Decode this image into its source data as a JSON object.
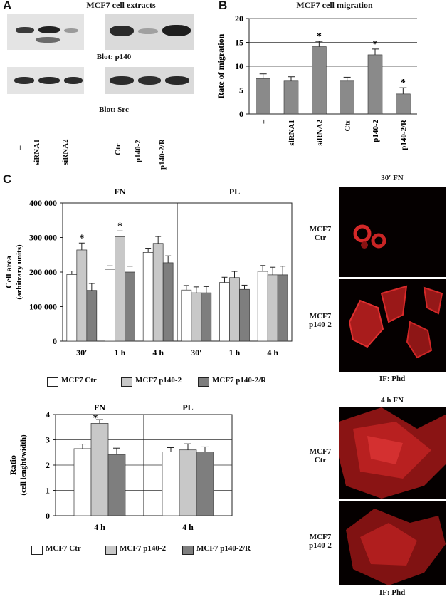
{
  "figure": {
    "panel_A": {
      "letter": "A",
      "title": "MCF7 cell extracts",
      "blot1_label": "Blot: p140",
      "blot2_label": "Blot: Src",
      "lanes": [
        "–",
        "siRNA1",
        "siRNA2",
        "Ctr",
        "p140-2",
        "p140-2/R"
      ]
    },
    "panel_B": {
      "letter": "B",
      "title": "MCF7 cell migration",
      "ylabel": "Rate of migration",
      "yticks": [
        "0",
        "5",
        "10",
        "15",
        "20"
      ],
      "star": "*"
    },
    "panel_C": {
      "letter": "C",
      "fn_label": "FN",
      "pl_label": "PL",
      "area_ylabel": "Cell area",
      "area_ylabel2": "(arbitrary units)",
      "area_yticks": [
        "0",
        "100 000",
        "200 000",
        "300 000",
        "400 000"
      ],
      "time_labels": [
        "30′",
        "1 h",
        "4 h",
        "30′",
        "1 h",
        "4 h"
      ],
      "legend": [
        "MCF7 Ctr",
        "MCF7 p140-2",
        "MCF7 p140-2/R"
      ],
      "ratio_ylabel": "Ratio",
      "ratio_ylabel2": "(cell lenght/width)",
      "ratio_yticks": [
        "0",
        "1",
        "2",
        "3",
        "4"
      ],
      "ratio_time_labels": [
        "4 h",
        "4 h"
      ],
      "star": "*",
      "micro_top_title": "30′ FN",
      "micro_bottom_title": "4 h FN",
      "micro_labels": [
        "MCF7\nCtr",
        "MCF7\np140-2",
        "MCF7\nCtr",
        "MCF7\np140-2"
      ],
      "micro_caption": "IF: Phd"
    }
  },
  "chart_data": [
    {
      "type": "bar",
      "title": "MCF7 cell migration",
      "ylabel": "Rate of migration",
      "ylim": [
        0,
        20
      ],
      "categories": [
        "–",
        "siRNA1",
        "siRNA2",
        "Ctr",
        "p140-2",
        "p140-2/R"
      ],
      "values": [
        7.4,
        6.9,
        14.1,
        6.9,
        12.4,
        4.2
      ],
      "errors": [
        1.0,
        0.9,
        1.1,
        0.8,
        1.2,
        1.3
      ],
      "significant": [
        false,
        false,
        true,
        false,
        true,
        true
      ],
      "grid": true,
      "colors": {
        "bar": "#8a8a8a"
      }
    },
    {
      "type": "bar",
      "ylabel": "Cell area (arbitrary units)",
      "ylim": [
        0,
        400000
      ],
      "groups": [
        "FN",
        "PL"
      ],
      "categories": [
        "30′",
        "1 h",
        "4 h",
        "30′",
        "1 h",
        "4 h"
      ],
      "series": [
        {
          "name": "MCF7 Ctr",
          "values": [
            193000,
            208000,
            257000,
            148000,
            170000,
            202000
          ],
          "errors": [
            10000,
            10000,
            12000,
            13000,
            15000,
            17000
          ]
        },
        {
          "name": "MCF7 p140-2",
          "values": [
            264000,
            302000,
            283000,
            140000,
            184000,
            192000
          ],
          "errors": [
            20000,
            17000,
            20000,
            17000,
            18000,
            22000
          ]
        },
        {
          "name": "MCF7 p140-2/R",
          "values": [
            147000,
            200000,
            227000,
            140000,
            150000,
            192000
          ],
          "errors": [
            20000,
            17000,
            20000,
            18000,
            12000,
            25000
          ]
        }
      ],
      "significant": {
        "MCF7 p140-2": [
          "30′",
          "1 h"
        ]
      },
      "colors": {
        "MCF7 Ctr": "#ffffff",
        "MCF7 p140-2": "#c8c8c8",
        "MCF7 p140-2/R": "#7e7e7e"
      }
    },
    {
      "type": "bar",
      "ylabel": "Ratio (cell lenght/width)",
      "ylim": [
        0,
        4
      ],
      "groups": [
        "FN",
        "PL"
      ],
      "categories": [
        "4 h",
        "4 h"
      ],
      "series": [
        {
          "name": "MCF7 Ctr",
          "values": [
            2.65,
            2.52
          ],
          "errors": [
            0.18,
            0.17
          ]
        },
        {
          "name": "MCF7 p140-2",
          "values": [
            3.65,
            2.6
          ],
          "errors": [
            0.15,
            0.24
          ]
        },
        {
          "name": "MCF7 p140-2/R",
          "values": [
            2.42,
            2.52
          ],
          "errors": [
            0.25,
            0.2
          ]
        }
      ],
      "significant": {
        "MCF7 p140-2": [
          "FN"
        ]
      },
      "grid": true,
      "colors": {
        "MCF7 Ctr": "#ffffff",
        "MCF7 p140-2": "#c8c8c8",
        "MCF7 p140-2/R": "#7e7e7e"
      }
    }
  ]
}
